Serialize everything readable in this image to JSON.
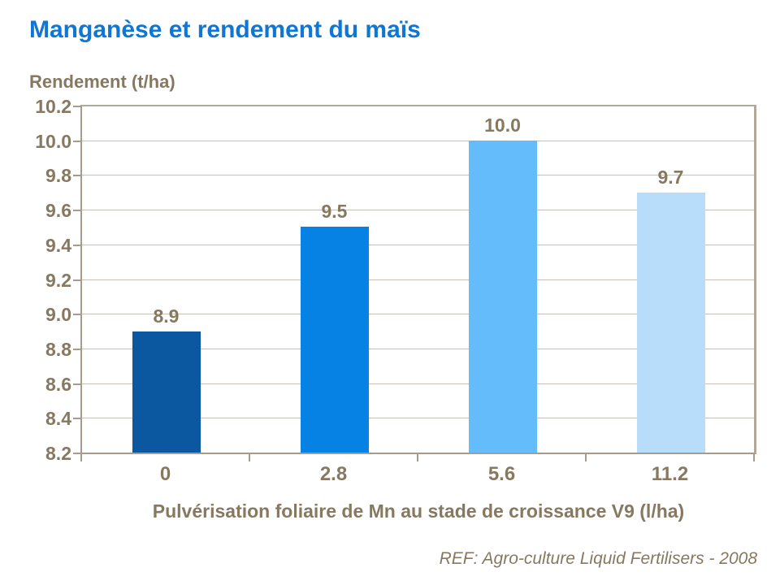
{
  "page": {
    "title": "Manganèse et rendement du maïs",
    "footer_ref": "REF: Agro-culture Liquid Fertilisers - 2008"
  },
  "colors": {
    "title": "#0E76D4",
    "text": "#877860",
    "axis_line": "#A79B8B",
    "plot_border": "#B3A897",
    "gridline": "#C9C0B4",
    "bars": [
      "#0B57A0",
      "#0682E4",
      "#64BCFB",
      "#B7DDFB"
    ]
  },
  "chart_data": {
    "type": "bar",
    "title": "Manganèse et rendement du maïs",
    "categories": [
      "0",
      "2.8",
      "5.6",
      "11.2"
    ],
    "values": [
      8.9,
      9.5,
      10.0,
      9.7
    ],
    "value_labels": [
      "8.9",
      "9.5",
      "10.0",
      "9.7"
    ],
    "xlabel": "Pulvérisation foliaire de Mn au stade de croissance V9 (l/ha)",
    "ylabel": "Rendement (t/ha)",
    "ylim": [
      8.2,
      10.2
    ],
    "ytick_step": 0.2,
    "ytick_labels": [
      "10.2",
      "10.0",
      "9.8",
      "9.6",
      "9.4",
      "9.2",
      "9.0",
      "8.8",
      "8.6",
      "8.4",
      "8.2"
    ],
    "grid": true,
    "legend": "none",
    "bar_colors": [
      "#0B57A0",
      "#0682E4",
      "#64BCFB",
      "#B7DDFB"
    ]
  }
}
